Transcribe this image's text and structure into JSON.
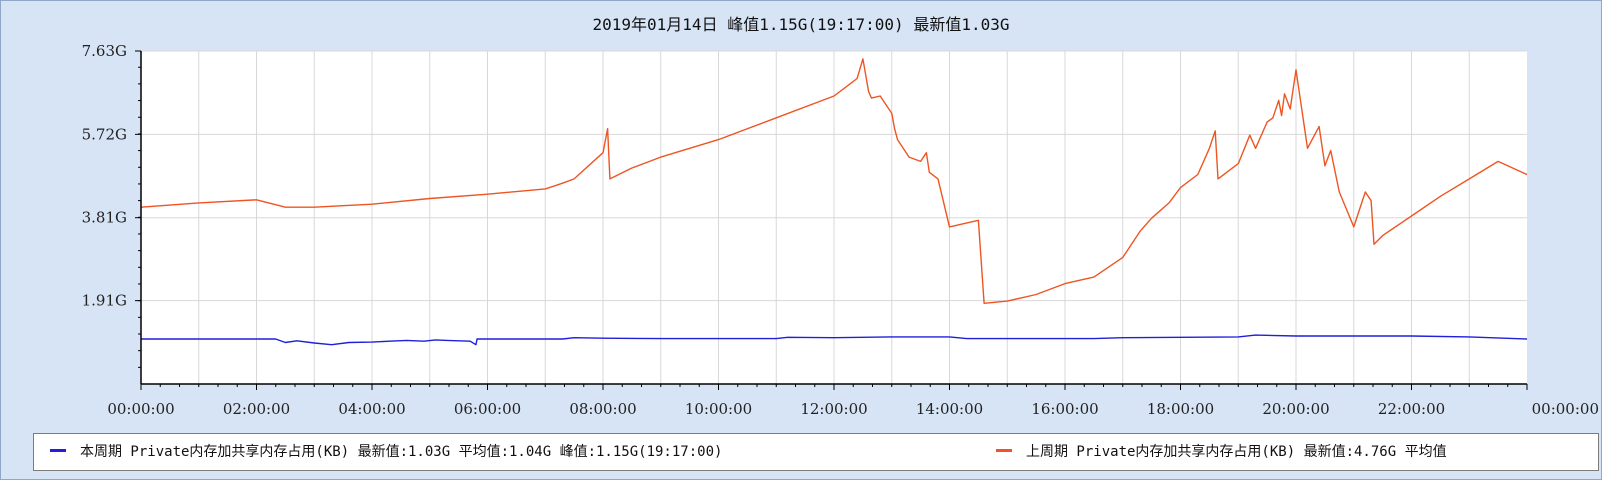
{
  "chart_data": {
    "type": "line",
    "title": "2019年01月14日  峰值1.15G(19:17:00)  最新值1.03G",
    "xlabel": "",
    "ylabel": "",
    "xlim": [
      0,
      24
    ],
    "ylim": [
      0,
      7.63
    ],
    "x_ticks": [
      "00:00:00",
      "02:00:00",
      "04:00:00",
      "06:00:00",
      "08:00:00",
      "10:00:00",
      "12:00:00",
      "14:00:00",
      "16:00:00",
      "18:00:00",
      "20:00:00",
      "22:00:00",
      "00:00:00"
    ],
    "y_ticks": [
      {
        "value": 1.91,
        "label": "1.91G"
      },
      {
        "value": 3.81,
        "label": "3.81G"
      },
      {
        "value": 5.72,
        "label": "5.72G"
      },
      {
        "value": 7.63,
        "label": "7.63G"
      }
    ],
    "grid": true,
    "legend_position": "bottom",
    "series": [
      {
        "name": "本周期 Private内存加共享内存占用(KB) 最新值:1.03G  平均值:1.04G  峰值:1.15G(19:17:00)",
        "color": "#1f1fdc",
        "x": [
          0,
          1,
          2,
          2.33,
          2.5,
          2.7,
          3,
          3.3,
          3.6,
          4,
          4.3,
          4.6,
          4.9,
          5.1,
          5.3,
          5.7,
          5.8,
          5.82,
          5.9,
          6.5,
          7.3,
          7.5,
          8,
          9,
          10,
          11,
          11.2,
          12,
          13,
          14,
          14.3,
          15,
          16,
          16.5,
          17,
          18,
          19,
          19.3,
          20,
          21,
          22,
          23,
          24
        ],
        "y": [
          1.03,
          1.03,
          1.03,
          1.03,
          0.95,
          0.99,
          0.94,
          0.9,
          0.95,
          0.96,
          0.98,
          1.0,
          0.98,
          1.01,
          1.0,
          0.98,
          0.9,
          1.03,
          1.03,
          1.03,
          1.03,
          1.06,
          1.05,
          1.04,
          1.04,
          1.04,
          1.07,
          1.06,
          1.08,
          1.08,
          1.04,
          1.04,
          1.04,
          1.04,
          1.06,
          1.07,
          1.08,
          1.12,
          1.1,
          1.1,
          1.1,
          1.08,
          1.03
        ]
      },
      {
        "name": "上周期 Private内存加共享内存占用(KB) 最新值:4.76G  平均值",
        "color": "#ee5522",
        "x": [
          0,
          1,
          2,
          2.5,
          3,
          4,
          5,
          6,
          7,
          7.3,
          7.5,
          8,
          8.08,
          8.12,
          8.5,
          9,
          10,
          11,
          12,
          12.3,
          12.4,
          12.5,
          12.6,
          12.65,
          12.8,
          13,
          13.05,
          13.1,
          13.3,
          13.5,
          13.6,
          13.65,
          13.8,
          14,
          14.5,
          14.6,
          15,
          15.5,
          16,
          16.5,
          17,
          17.3,
          17.5,
          17.8,
          18,
          18.3,
          18.5,
          18.6,
          18.65,
          19,
          19.2,
          19.3,
          19.5,
          19.6,
          19.7,
          19.75,
          19.8,
          19.9,
          20,
          20.2,
          20.4,
          20.5,
          20.6,
          20.75,
          21,
          21.2,
          21.3,
          21.35,
          21.5,
          22,
          22.5,
          23,
          23.5,
          24
        ],
        "y": [
          4.05,
          4.15,
          4.22,
          4.05,
          4.05,
          4.12,
          4.25,
          4.35,
          4.47,
          4.6,
          4.7,
          5.3,
          5.85,
          4.7,
          4.95,
          5.2,
          5.6,
          6.1,
          6.6,
          6.9,
          7.0,
          7.45,
          6.7,
          6.55,
          6.6,
          6.2,
          5.85,
          5.6,
          5.2,
          5.1,
          5.3,
          4.85,
          4.7,
          3.6,
          3.75,
          1.85,
          1.9,
          2.05,
          2.3,
          2.45,
          2.9,
          3.5,
          3.8,
          4.15,
          4.5,
          4.8,
          5.4,
          5.8,
          4.7,
          5.05,
          5.7,
          5.4,
          6.0,
          6.1,
          6.5,
          6.15,
          6.65,
          6.3,
          7.2,
          5.4,
          5.9,
          5.0,
          5.35,
          4.4,
          3.6,
          4.4,
          4.2,
          3.2,
          3.4,
          3.85,
          4.3,
          4.7,
          5.1,
          4.8
        ]
      }
    ]
  }
}
